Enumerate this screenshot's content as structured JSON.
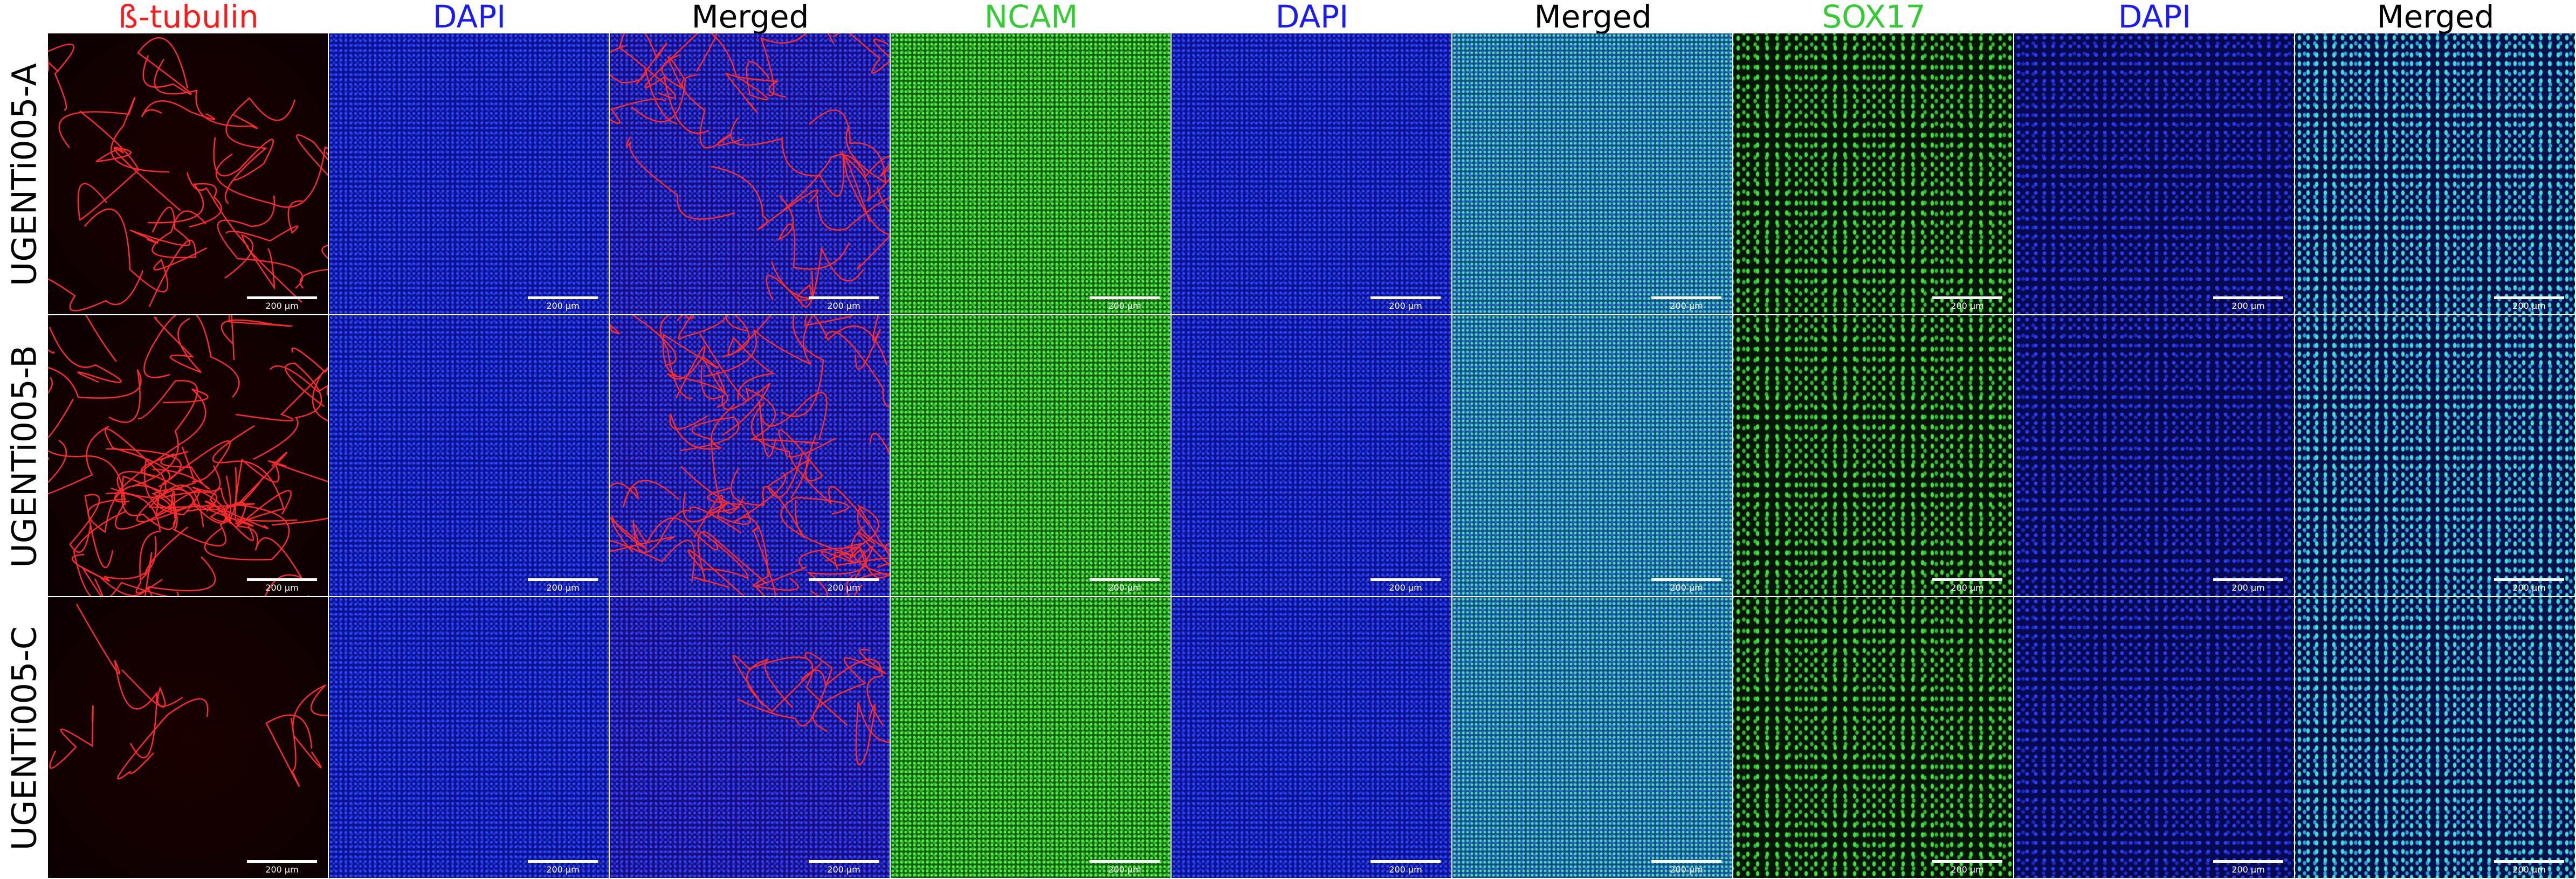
{
  "figure": {
    "column_headers": [
      {
        "text": "ß-tubulin",
        "color": "#ff1a1a"
      },
      {
        "text": "DAPI",
        "color": "#1a1aff"
      },
      {
        "text": "Merged",
        "color": "#000000"
      },
      {
        "text": "NCAM",
        "color": "#33cc33"
      },
      {
        "text": "DAPI",
        "color": "#1a1aff"
      },
      {
        "text": "Merged",
        "color": "#000000"
      },
      {
        "text": "SOX17",
        "color": "#33cc33"
      },
      {
        "text": "DAPI",
        "color": "#1a1aff"
      },
      {
        "text": "Merged",
        "color": "#000000"
      }
    ],
    "row_labels": [
      "UGENTi005-A",
      "UGENTi005-B",
      "UGENTi005-C"
    ],
    "scale_bar_labels": [
      [
        "200 µm",
        "200 µm",
        "200 µm",
        "200 µm",
        "200 µm",
        "200 µm",
        "200 µm",
        "200 µm",
        "200 µm"
      ],
      [
        "200 µm",
        "200 µm",
        "200 µm",
        "200 µm",
        "200 µm",
        "200 µm",
        "200 µm",
        "200 µm",
        "200 µm"
      ],
      [
        "200 µm",
        "200 µm",
        "200 µm",
        "200 µm",
        "200 µm",
        "200 µm",
        "200 µm",
        "200 µm",
        "200 µm"
      ]
    ]
  }
}
